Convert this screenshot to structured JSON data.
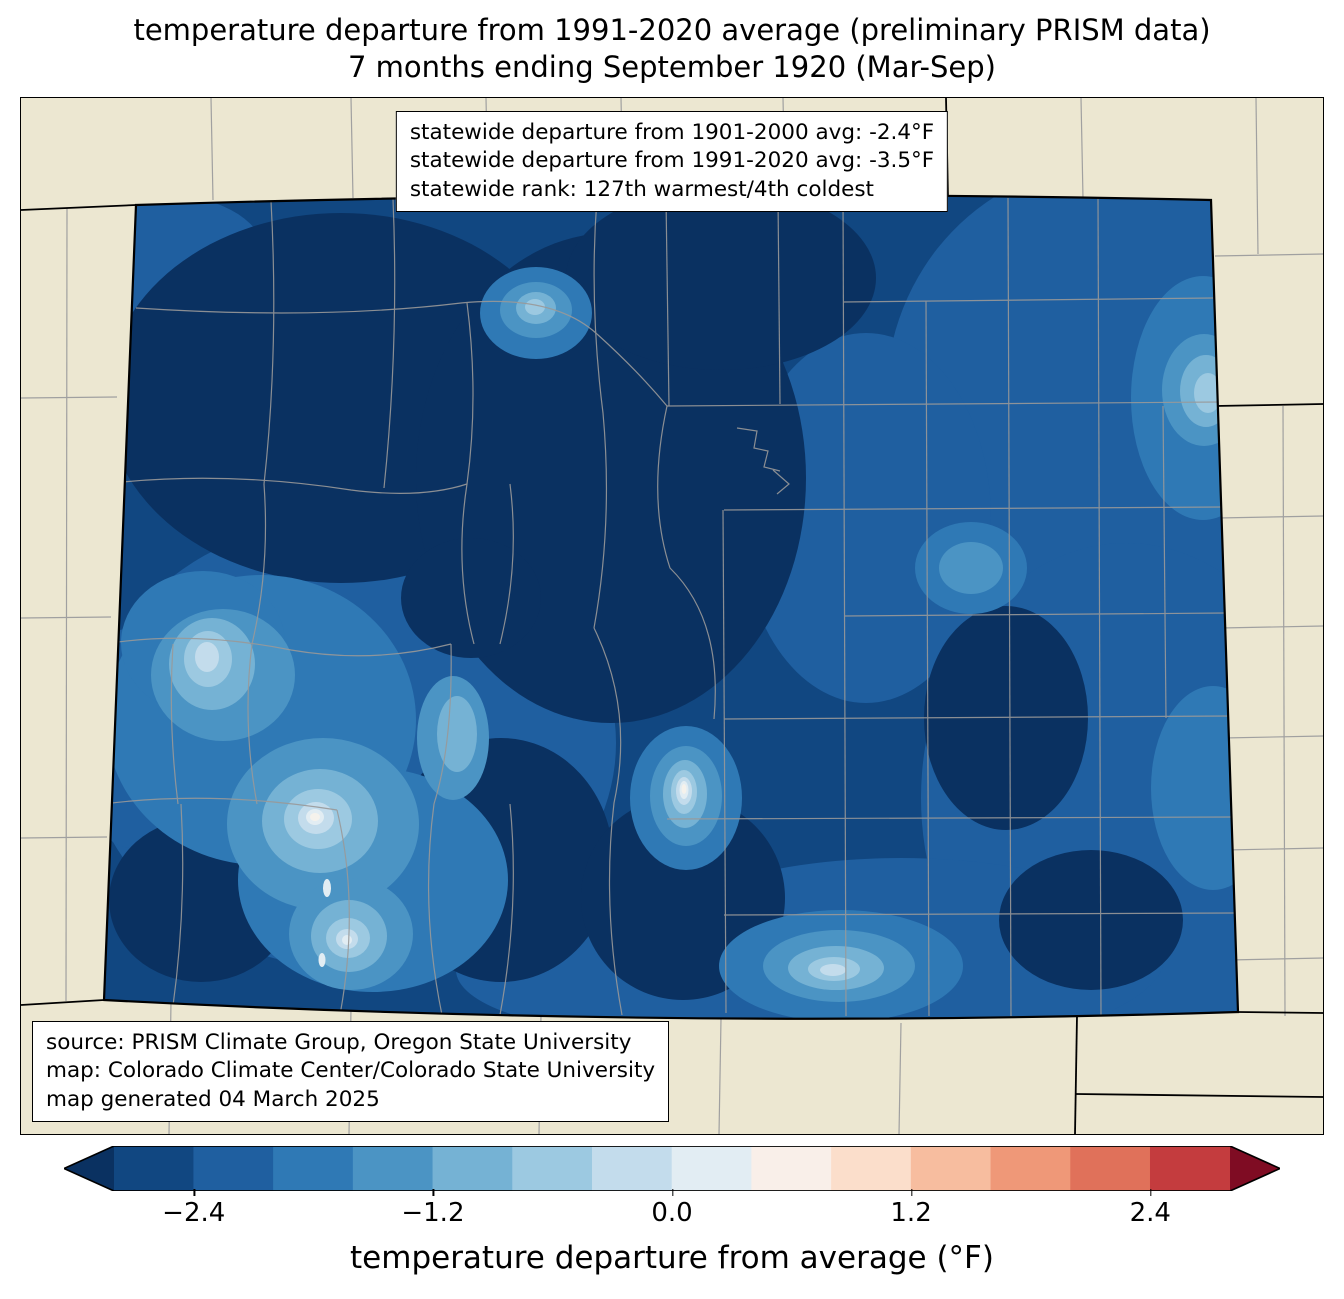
{
  "title": {
    "line1": "temperature departure from 1991-2020 average (preliminary PRISM data)",
    "line2": "7 months ending September 1920 (Mar-Sep)"
  },
  "stats_box": {
    "lines": [
      "statewide departure from 1901-2000 avg: -2.4°F",
      "statewide departure from 1991-2020 avg: -3.5°F",
      "statewide rank: 127th warmest/4th coldest"
    ]
  },
  "source_box": {
    "lines": [
      "source: PRISM Climate Group, Oregon State University",
      "map: Colorado Climate Center/Colorado State University",
      "map generated 04 March 2025"
    ]
  },
  "colorbar": {
    "label": "temperature departure from average (°F)",
    "range": [
      -2.8,
      2.8
    ],
    "ticks": [
      {
        "label": "−2.4",
        "value": -2.4,
        "pos": 0.1067
      },
      {
        "label": "−1.2",
        "value": -1.2,
        "pos": 0.3034
      },
      {
        "label": "0.0",
        "value": 0.0,
        "pos": 0.5
      },
      {
        "label": "1.2",
        "value": 1.2,
        "pos": 0.6966
      },
      {
        "label": "2.4",
        "value": 2.4,
        "pos": 0.8933
      }
    ],
    "segments": [
      "#114781",
      "#1f5fa0",
      "#2f79b5",
      "#4b94c4",
      "#75b2d4",
      "#9cc9e1",
      "#c3dcec",
      "#e2edf3",
      "#f9efe9",
      "#fbdecb",
      "#f7bd9f",
      "#ef9878",
      "#e0715a",
      "#c43c3e"
    ],
    "left_arrow": "#0a3161",
    "right_arrow": "#7f0c23",
    "outline": "#000000"
  },
  "map": {
    "levels": {
      "bg": "#ece7d1",
      "b0": "#0a3161",
      "b1": "#114781",
      "b2": "#1f5fa0",
      "b3": "#2f79b5",
      "b4": "#4b94c4",
      "b5": "#75b2d4",
      "b6": "#9cc9e1",
      "b7": "#c3dcec",
      "b8": "#e2edf3",
      "b9": "#f5f2ec"
    },
    "strokes": {
      "county": "#999999",
      "outer_county": "#a0a0a0",
      "state": "#000000",
      "neighbor": "#000000"
    }
  },
  "chart_data": {
    "type": "heatmap",
    "title": "temperature departure from 1991-2020 average (preliminary PRISM data), 7 months ending September 1920 (Mar-Sep)",
    "region": "Colorado",
    "colorbar_label": "temperature departure from average (°F)",
    "colorbar_ticks": [
      -2.4,
      -1.2,
      0.0,
      1.2,
      2.4
    ],
    "colorbar_range": [
      -2.8,
      2.8
    ],
    "statewide_departure_1901_2000_avg_F": -2.4,
    "statewide_departure_1991_2020_avg_F": -3.5,
    "statewide_rank": "127th warmest/4th coldest"
  }
}
